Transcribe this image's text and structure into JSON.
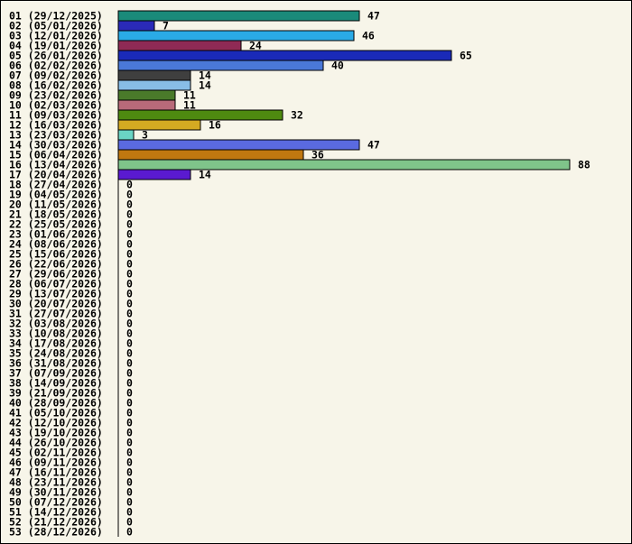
{
  "chart_data": {
    "type": "bar",
    "orientation": "horizontal",
    "title": "",
    "xlabel": "",
    "ylabel": "",
    "xlim": [
      0,
      88
    ],
    "grid": false,
    "categories": [
      "01 (29/12/2025)",
      "02 (05/01/2026)",
      "03 (12/01/2026)",
      "04 (19/01/2026)",
      "05 (26/01/2026)",
      "06 (02/02/2026)",
      "07 (09/02/2026)",
      "08 (16/02/2026)",
      "09 (23/02/2026)",
      "10 (02/03/2026)",
      "11 (09/03/2026)",
      "12 (16/03/2026)",
      "13 (23/03/2026)",
      "14 (30/03/2026)",
      "15 (06/04/2026)",
      "16 (13/04/2026)",
      "17 (20/04/2026)",
      "18 (27/04/2026)",
      "19 (04/05/2026)",
      "20 (11/05/2026)",
      "21 (18/05/2026)",
      "22 (25/05/2026)",
      "23 (01/06/2026)",
      "24 (08/06/2026)",
      "25 (15/06/2026)",
      "26 (22/06/2026)",
      "27 (29/06/2026)",
      "28 (06/07/2026)",
      "29 (13/07/2026)",
      "30 (20/07/2026)",
      "31 (27/07/2026)",
      "32 (03/08/2026)",
      "33 (10/08/2026)",
      "34 (17/08/2026)",
      "35 (24/08/2026)",
      "36 (31/08/2026)",
      "37 (07/09/2026)",
      "38 (14/09/2026)",
      "39 (21/09/2026)",
      "40 (28/09/2026)",
      "41 (05/10/2026)",
      "42 (12/10/2026)",
      "43 (19/10/2026)",
      "44 (26/10/2026)",
      "45 (02/11/2026)",
      "46 (09/11/2026)",
      "47 (16/11/2026)",
      "48 (23/11/2026)",
      "49 (30/11/2026)",
      "50 (07/12/2026)",
      "51 (14/12/2026)",
      "52 (21/12/2026)",
      "53 (28/12/2026)"
    ],
    "values": [
      47,
      7,
      46,
      24,
      65,
      40,
      14,
      14,
      11,
      11,
      32,
      16,
      3,
      47,
      36,
      88,
      14,
      0,
      0,
      0,
      0,
      0,
      0,
      0,
      0,
      0,
      0,
      0,
      0,
      0,
      0,
      0,
      0,
      0,
      0,
      0,
      0,
      0,
      0,
      0,
      0,
      0,
      0,
      0,
      0,
      0,
      0,
      0,
      0,
      0,
      0,
      0,
      0
    ],
    "colors": [
      "#1a8a7a",
      "#2a2ab8",
      "#2aaae6",
      "#8f2a55",
      "#1a2ab8",
      "#4a78d8",
      "#3f3f3f",
      "#88bde6",
      "#4a7a2a",
      "#b86a7a",
      "#4e8a10",
      "#d4aa22",
      "#6ad4c4",
      "#5a6ae0",
      "#c07810",
      "#7fc48a",
      "#5a1ad0"
    ]
  }
}
